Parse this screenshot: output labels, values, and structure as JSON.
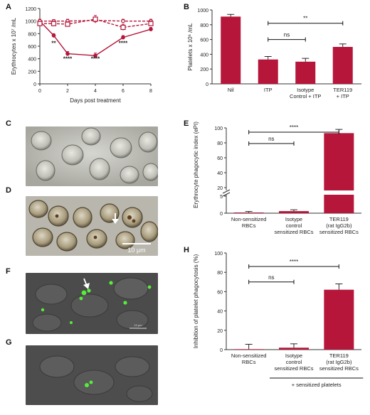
{
  "panel_labels": [
    "A",
    "B",
    "C",
    "D",
    "E",
    "F",
    "G",
    "H"
  ],
  "micro_scale_bar": "10 μm",
  "micro_scale_bar_small": "10 μm",
  "colors": {
    "series": "#b5163a",
    "bar": "#b5163a",
    "axis": "#333333"
  },
  "chart_data": [
    {
      "id": "A",
      "type": "line",
      "xlabel": "Days post treatment",
      "ylabel": "Erythrocytes x 10⁷ /mL",
      "xlim": [
        0,
        8
      ],
      "ylim": [
        0,
        1200
      ],
      "xticks": [
        0,
        2,
        4,
        6,
        8
      ],
      "yticks": [
        0,
        200,
        400,
        600,
        800,
        1000,
        1200
      ],
      "series": [
        {
          "style": "solid-filled-circle",
          "x": [
            0,
            1,
            2,
            4,
            6,
            8
          ],
          "y": [
            1000,
            770,
            480,
            450,
            740,
            870
          ],
          "err": [
            30,
            30,
            35,
            40,
            30,
            30
          ]
        },
        {
          "style": "dashed-open-circle",
          "x": [
            0,
            1,
            2,
            4,
            6,
            8
          ],
          "y": [
            1000,
            1000,
            1000,
            1010,
            1000,
            1000
          ],
          "err": [
            20,
            25,
            30,
            25,
            30,
            30
          ]
        },
        {
          "style": "dashed-open-square",
          "x": [
            0,
            1,
            2,
            4,
            6,
            8
          ],
          "y": [
            960,
            960,
            950,
            1030,
            900,
            960
          ],
          "err": [
            30,
            40,
            40,
            60,
            50,
            40
          ]
        }
      ],
      "annotations": [
        {
          "x": 1,
          "y": 820,
          "text": "**"
        },
        {
          "x": 2,
          "y": 570,
          "text": "****"
        },
        {
          "x": 4,
          "y": 570,
          "text": "****"
        },
        {
          "x": 6,
          "y": 820,
          "text": "****"
        }
      ]
    },
    {
      "id": "B",
      "type": "bar",
      "ylabel": "Platelets x 10⁶ /mL",
      "ylim": [
        0,
        1000
      ],
      "yticks": [
        0,
        200,
        400,
        600,
        800,
        1000
      ],
      "categories": [
        [
          "Nil"
        ],
        [
          "ITP"
        ],
        [
          "Isotype",
          "Control + ITP"
        ],
        [
          "TER119",
          "+ ITP"
        ]
      ],
      "values": [
        910,
        330,
        300,
        500
      ],
      "errors": [
        30,
        40,
        45,
        40
      ],
      "significance": [
        {
          "from": 1,
          "to": 3,
          "text": "**",
          "y": 820
        },
        {
          "from": 1,
          "to": 2,
          "text": "ns",
          "y": 600
        }
      ]
    },
    {
      "id": "E",
      "type": "bar",
      "ylabel": "Erythrocyte phagocytic index (ePI)",
      "yticks_lower": [
        0,
        5
      ],
      "yticks_upper": [
        20,
        40,
        60,
        80,
        100
      ],
      "categories": [
        [
          "Non-sensitized",
          "RBCs"
        ],
        [
          "Isotype",
          "control",
          "sensitized RBCs"
        ],
        [
          "TER119",
          "(rat IgG2b)",
          "sensitized RBCs"
        ]
      ],
      "values": [
        0.2,
        0.6,
        93
      ],
      "errors": [
        0.3,
        0.4,
        5
      ],
      "significance": [
        {
          "from": 0,
          "to": 2,
          "text": "****"
        },
        {
          "from": 0,
          "to": 1,
          "text": "ns"
        }
      ]
    },
    {
      "id": "H",
      "type": "bar",
      "ylabel": "Inhibition of platelet phagocytosis (%)",
      "ylim": [
        0,
        100
      ],
      "yticks": [
        0,
        20,
        40,
        60,
        80,
        100
      ],
      "categories": [
        [
          "Non-sensitized",
          "RBCs"
        ],
        [
          "Isotype",
          "control",
          "sensitized RBCs"
        ],
        [
          "TER119",
          "(rat IgG2b)",
          "sensitized RBCs"
        ]
      ],
      "values": [
        0.5,
        2,
        62
      ],
      "errors": [
        5,
        4,
        6
      ],
      "significance": [
        {
          "from": 0,
          "to": 2,
          "text": "****",
          "y": 86
        },
        {
          "from": 0,
          "to": 1,
          "text": "ns",
          "y": 70
        }
      ],
      "footnote": "+ sensitized platelets"
    }
  ]
}
